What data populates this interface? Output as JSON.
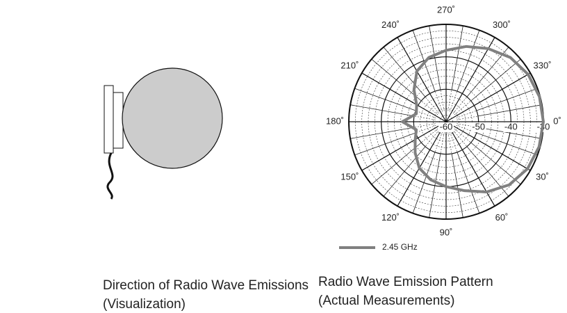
{
  "visualization": {
    "caption": [
      "Direction of Radio Wave Emissions",
      "(Visualization)"
    ]
  },
  "chart_data": {
    "type": "polar",
    "caption": [
      "Radio Wave Emission Pattern",
      "(Actual Measurements)"
    ],
    "theta": [
      0,
      15,
      30,
      45,
      60,
      75,
      90,
      105,
      120,
      135,
      150,
      165,
      180,
      195,
      210,
      225,
      240,
      255,
      270,
      285,
      300,
      315,
      330,
      345
    ],
    "series": [
      {
        "name": "2.45 GHz",
        "color": "#808080",
        "values": [
          -30,
          -30.3,
          -31,
          -32.5,
          -35,
          -38,
          -40,
          -41.5,
          -43.5,
          -46.5,
          -49,
          -50.5,
          -46.5,
          -50.5,
          -49.5,
          -46,
          -42,
          -39.5,
          -38,
          -36,
          -34,
          -32,
          -30.8,
          -30.2
        ]
      }
    ],
    "rlim": [
      -60,
      -30
    ],
    "rticks": [
      -60,
      -50,
      -40,
      -30
    ],
    "thetaticks": [
      {
        "value": 0,
        "label": "0˚"
      },
      {
        "value": 30,
        "label": "30˚"
      },
      {
        "value": 60,
        "label": "60˚"
      },
      {
        "value": 90,
        "label": "90˚"
      },
      {
        "value": 120,
        "label": "120˚"
      },
      {
        "value": 150,
        "label": "150˚"
      },
      {
        "value": 180,
        "label": "180˚"
      },
      {
        "value": 210,
        "label": "210˚"
      },
      {
        "value": 240,
        "label": "240˚"
      },
      {
        "value": 270,
        "label": "270˚"
      },
      {
        "value": 300,
        "label": "300˚"
      },
      {
        "value": 330,
        "label": "330˚"
      }
    ],
    "grid": true
  }
}
